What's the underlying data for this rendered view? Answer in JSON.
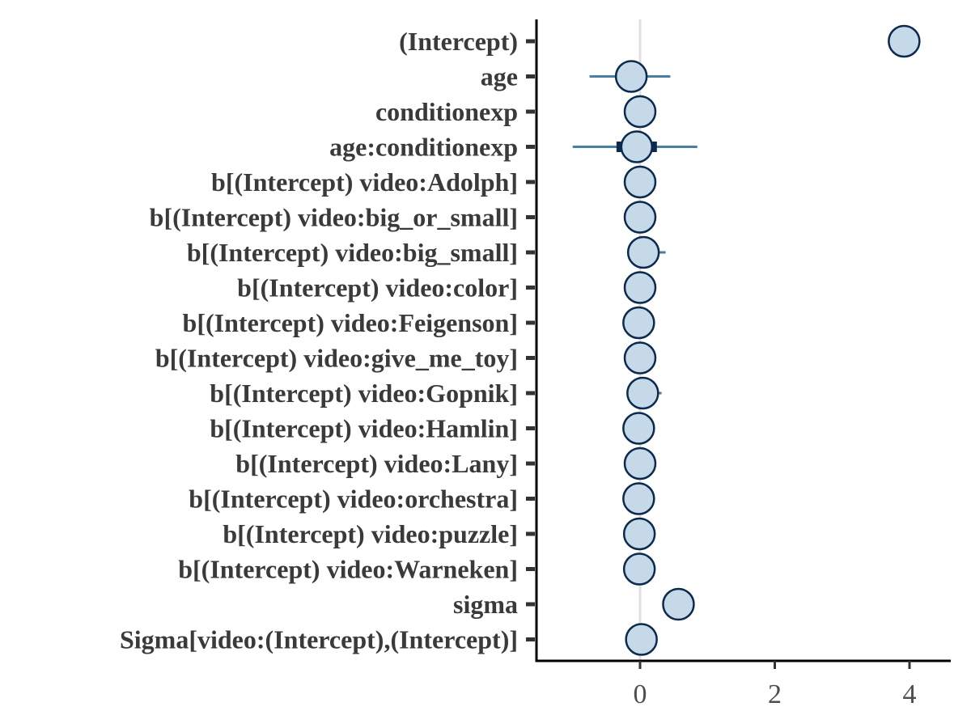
{
  "chart_data": {
    "type": "scatter",
    "title": "",
    "xlabel": "",
    "ylabel": "",
    "xlim": [
      -1.5,
      4.6
    ],
    "x_ticks": [
      {
        "value": 0,
        "label": "0"
      },
      {
        "value": 2,
        "label": "2"
      },
      {
        "value": 4,
        "label": "4"
      }
    ],
    "reference_line": 0,
    "grid": false,
    "legend": "none",
    "colors": {
      "point_fill": "#c6d9e8",
      "point_stroke": "#0b2a4d",
      "outer_interval": "#4a7ea2",
      "inner_interval": "#0b2a4d",
      "reference_line": "#e0e0e0",
      "axis": "#000000",
      "text": "#3a3a3a"
    },
    "parameters": [
      {
        "label": "(Intercept)",
        "estimate": 3.92,
        "inner": [
          3.92,
          3.92
        ],
        "outer": [
          3.92,
          3.92
        ]
      },
      {
        "label": "age",
        "estimate": -0.13,
        "inner": [
          -0.3,
          0.05
        ],
        "outer": [
          -0.75,
          0.45
        ]
      },
      {
        "label": "conditionexp",
        "estimate": 0.0,
        "inner": [
          0.0,
          0.0
        ],
        "outer": [
          0.0,
          0.0
        ]
      },
      {
        "label": "age:conditionexp",
        "estimate": -0.05,
        "inner": [
          -0.35,
          0.25
        ],
        "outer": [
          -1.0,
          0.85
        ]
      },
      {
        "label": "b[(Intercept) video:Adolph]",
        "estimate": 0.0,
        "inner": [
          0.0,
          0.0
        ],
        "outer": [
          0.0,
          0.0
        ]
      },
      {
        "label": "b[(Intercept) video:big_or_small]",
        "estimate": 0.0,
        "inner": [
          0.0,
          0.0
        ],
        "outer": [
          0.0,
          0.0
        ]
      },
      {
        "label": "b[(Intercept) video:big_small]",
        "estimate": 0.05,
        "inner": [
          0.05,
          0.05
        ],
        "outer": [
          0.0,
          0.38
        ]
      },
      {
        "label": "b[(Intercept) video:color]",
        "estimate": 0.0,
        "inner": [
          0.0,
          0.0
        ],
        "outer": [
          0.0,
          0.0
        ]
      },
      {
        "label": "b[(Intercept) video:Feigenson]",
        "estimate": -0.02,
        "inner": [
          -0.02,
          -0.02
        ],
        "outer": [
          -0.02,
          -0.02
        ]
      },
      {
        "label": "b[(Intercept) video:give_me_toy]",
        "estimate": 0.0,
        "inner": [
          0.0,
          0.0
        ],
        "outer": [
          0.0,
          0.0
        ]
      },
      {
        "label": "b[(Intercept) video:Gopnik]",
        "estimate": 0.04,
        "inner": [
          0.04,
          0.04
        ],
        "outer": [
          0.0,
          0.32
        ]
      },
      {
        "label": "b[(Intercept) video:Hamlin]",
        "estimate": -0.02,
        "inner": [
          -0.02,
          -0.02
        ],
        "outer": [
          -0.02,
          -0.02
        ]
      },
      {
        "label": "b[(Intercept) video:Lany]",
        "estimate": 0.0,
        "inner": [
          0.0,
          0.0
        ],
        "outer": [
          0.0,
          0.0
        ]
      },
      {
        "label": "b[(Intercept) video:orchestra]",
        "estimate": -0.02,
        "inner": [
          -0.02,
          -0.02
        ],
        "outer": [
          -0.02,
          -0.02
        ]
      },
      {
        "label": "b[(Intercept) video:puzzle]",
        "estimate": -0.01,
        "inner": [
          -0.01,
          -0.01
        ],
        "outer": [
          -0.01,
          -0.01
        ]
      },
      {
        "label": "b[(Intercept) video:Warneken]",
        "estimate": -0.01,
        "inner": [
          -0.01,
          -0.01
        ],
        "outer": [
          -0.01,
          -0.01
        ]
      },
      {
        "label": "sigma",
        "estimate": 0.57,
        "inner": [
          0.57,
          0.57
        ],
        "outer": [
          0.57,
          0.57
        ]
      },
      {
        "label": "Sigma[video:(Intercept),(Intercept)]",
        "estimate": 0.02,
        "inner": [
          0.02,
          0.02
        ],
        "outer": [
          0.02,
          0.02
        ]
      }
    ]
  }
}
